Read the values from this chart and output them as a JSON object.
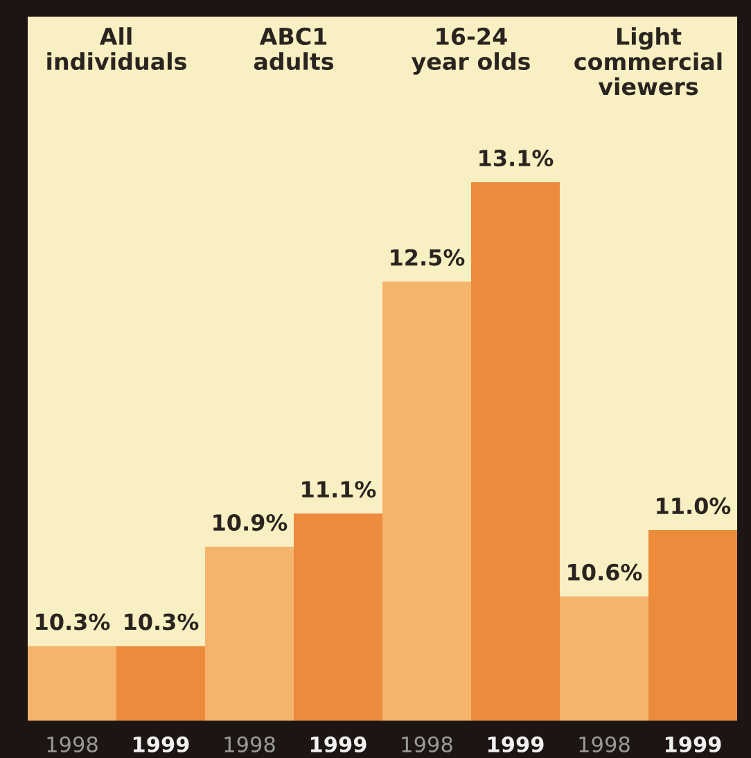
{
  "chart_data": {
    "type": "bar",
    "categories": [
      "1998",
      "1999",
      "1998",
      "1999",
      "1998",
      "1999",
      "1998",
      "1999"
    ],
    "values": [
      10.3,
      10.3,
      10.9,
      11.1,
      12.5,
      13.1,
      10.6,
      11.0
    ],
    "value_labels": [
      "10.3%",
      "10.3%",
      "10.9%",
      "11.1%",
      "12.5%",
      "13.1%",
      "10.6%",
      "11.0%"
    ],
    "colors": [
      "#f5b46c",
      "#ec8b3c",
      "#f5b46c",
      "#ec8b3c",
      "#f5b46c",
      "#ec8b3c",
      "#f5b46c",
      "#ec8b3c"
    ],
    "ylim": [
      9.85,
      14.1
    ],
    "tick_labels": "x",
    "grid": false,
    "legend": false,
    "annotations": [
      "All\nindividuals",
      "ABC1\nadults",
      "16-24\nyear olds",
      "Light\ncommercial\nviewers"
    ]
  }
}
